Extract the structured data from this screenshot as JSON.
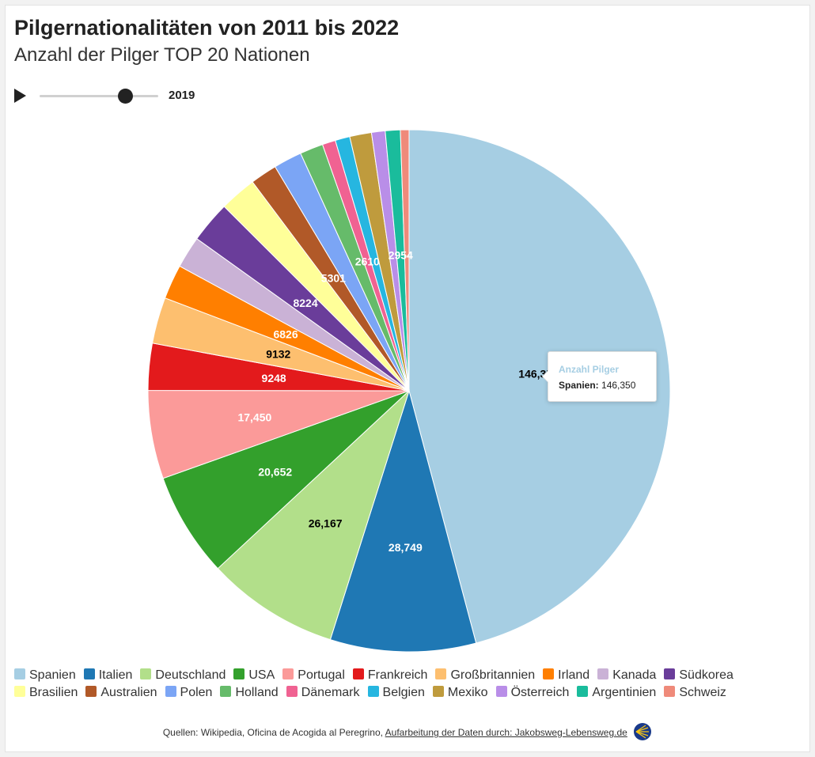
{
  "header": {
    "title": "Pilgernationalitäten von 2011 bis 2022",
    "subtitle": "Anzahl der Pilger TOP 20 Nationen"
  },
  "player": {
    "year": "2019",
    "position": 0.72
  },
  "tooltip": {
    "title": "Anzahl Pilger",
    "label": "Spanien:",
    "value": "146,350"
  },
  "source": {
    "prefix": "Quellen: Wikipedia, Oficina de Acogida al Peregrino,",
    "link_text": "Aufarbeitung der Daten durch: Jakobsweg-Lebensweg.de"
  },
  "chart_data": {
    "type": "pie",
    "title": "Pilgernationalitäten von 2011 bis 2022",
    "subtitle": "Anzahl der Pilger TOP 20 Nationen",
    "legend_position": "bottom",
    "slices": [
      {
        "name": "Spanien",
        "value": 146350,
        "label": "146,350",
        "color": "#a6cee3",
        "label_color": "#000000"
      },
      {
        "name": "Italien",
        "value": 28749,
        "label": "28,749",
        "color": "#1f78b4",
        "label_color": "#ffffff"
      },
      {
        "name": "Deutschland",
        "value": 26167,
        "label": "26,167",
        "color": "#b2df8a",
        "label_color": "#000000"
      },
      {
        "name": "USA",
        "value": 20652,
        "label": "20,652",
        "color": "#33a02c",
        "label_color": "#ffffff"
      },
      {
        "name": "Portugal",
        "value": 17450,
        "label": "17,450",
        "color": "#fb9a99",
        "label_color": "#ffffff"
      },
      {
        "name": "Frankreich",
        "value": 9248,
        "label": "9248",
        "color": "#e31a1c",
        "label_color": "#ffffff"
      },
      {
        "name": "Großbritannien",
        "value": 9132,
        "label": "9132",
        "color": "#fdbf6f",
        "label_color": "#000000"
      },
      {
        "name": "Irland",
        "value": 6826,
        "label": "6826",
        "color": "#ff7f00",
        "label_color": "#ffffff"
      },
      {
        "name": "Kanada",
        "value": 6300,
        "label": "",
        "color": "#cab2d6",
        "label_color": "#000000"
      },
      {
        "name": "Südkorea",
        "value": 8224,
        "label": "8224",
        "color": "#6a3d9a",
        "label_color": "#ffffff"
      },
      {
        "name": "Brasilien",
        "value": 7300,
        "label": "",
        "color": "#ffff99",
        "label_color": "#000000"
      },
      {
        "name": "Australien",
        "value": 5301,
        "label": "5301",
        "color": "#b15928",
        "label_color": "#ffffff"
      },
      {
        "name": "Polen",
        "value": 5600,
        "label": "",
        "color": "#7ba5f5",
        "label_color": "#000000"
      },
      {
        "name": "Holland",
        "value": 4600,
        "label": "",
        "color": "#66bb6a",
        "label_color": "#000000"
      },
      {
        "name": "Dänemark",
        "value": 2610,
        "label": "2610",
        "color": "#f06292",
        "label_color": "#ffffff"
      },
      {
        "name": "Belgien",
        "value": 2900,
        "label": "",
        "color": "#26b6e0",
        "label_color": "#000000"
      },
      {
        "name": "Mexiko",
        "value": 4300,
        "label": "",
        "color": "#bf9b3d",
        "label_color": "#000000"
      },
      {
        "name": "Österreich",
        "value": 2700,
        "label": "",
        "color": "#b98ee8",
        "label_color": "#000000"
      },
      {
        "name": "Argentinien",
        "value": 2954,
        "label": "2954",
        "color": "#1abc9c",
        "label_color": "#ffffff"
      },
      {
        "name": "Schweiz",
        "value": 1700,
        "label": "",
        "color": "#ef8a7a",
        "label_color": "#000000"
      }
    ]
  }
}
